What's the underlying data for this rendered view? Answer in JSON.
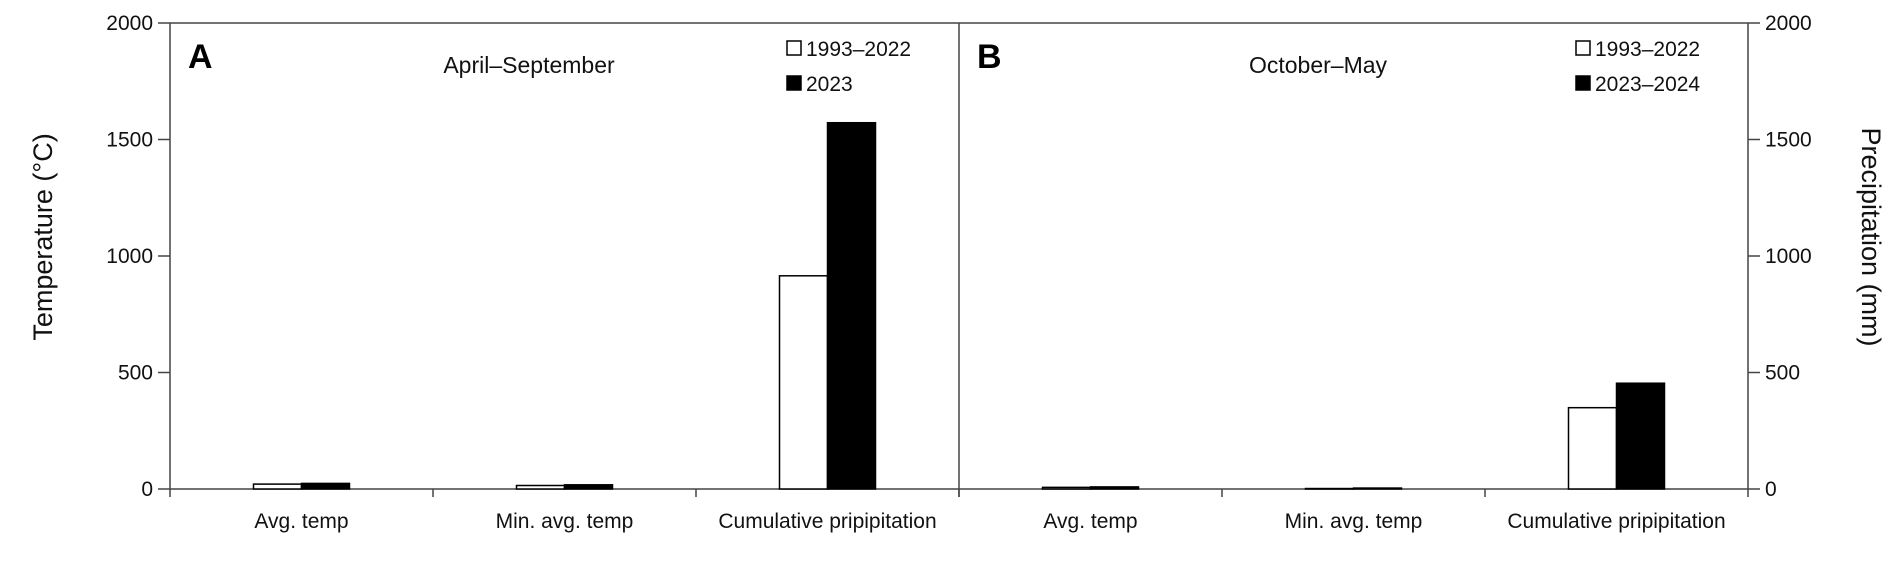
{
  "chart_data": {
    "type": "bar",
    "ylabel_left": "Temperature (°C)",
    "ylabel_right": "Precipitation (mm)",
    "ylim": [
      0,
      2000
    ],
    "yticks": [
      0,
      500,
      1000,
      1500,
      2000
    ],
    "categories": [
      "Avg. temp",
      "Min. avg. temp",
      "Cumulative pripipitation"
    ],
    "grid": false,
    "panels": [
      {
        "letter": "A",
        "subtitle": "April–September",
        "legend_position": "top-right",
        "series": [
          {
            "name": "1993–2022",
            "color": "#ffffff",
            "values": [
              21,
              15,
              915
            ]
          },
          {
            "name": "2023",
            "color": "#000000",
            "values": [
              24,
              18,
              1572
            ]
          }
        ]
      },
      {
        "letter": "B",
        "subtitle": "October–May",
        "legend_position": "top-right",
        "series": [
          {
            "name": "1993–2022",
            "color": "#ffffff",
            "values": [
              7,
              2,
              349
            ]
          },
          {
            "name": "2023–2024",
            "color": "#000000",
            "values": [
              9,
              4,
              454
            ]
          }
        ]
      }
    ]
  }
}
